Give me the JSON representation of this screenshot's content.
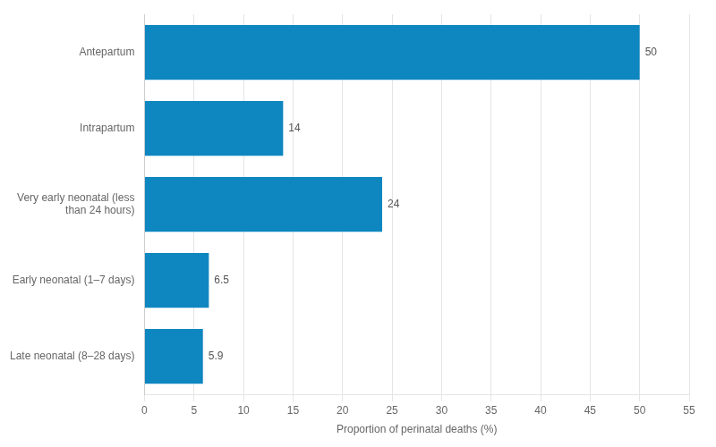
{
  "chart_data": {
    "type": "bar",
    "orientation": "horizontal",
    "categories": [
      "Antepartum",
      "Intrapartum",
      "Very early neonatal (less\nthan 24 hours)",
      "Early neonatal (1–7 days)",
      "Late neonatal (8–28 days)"
    ],
    "values": [
      50,
      14,
      24,
      6.5,
      5.9
    ],
    "color": "#0e86c0",
    "xlabel": "Proportion of perinatal deaths (%)",
    "xlim": [
      0,
      55
    ],
    "xticks": [
      0,
      5,
      10,
      15,
      20,
      25,
      30,
      35,
      40,
      45,
      50,
      55
    ],
    "grid": true,
    "data_labels": true
  }
}
